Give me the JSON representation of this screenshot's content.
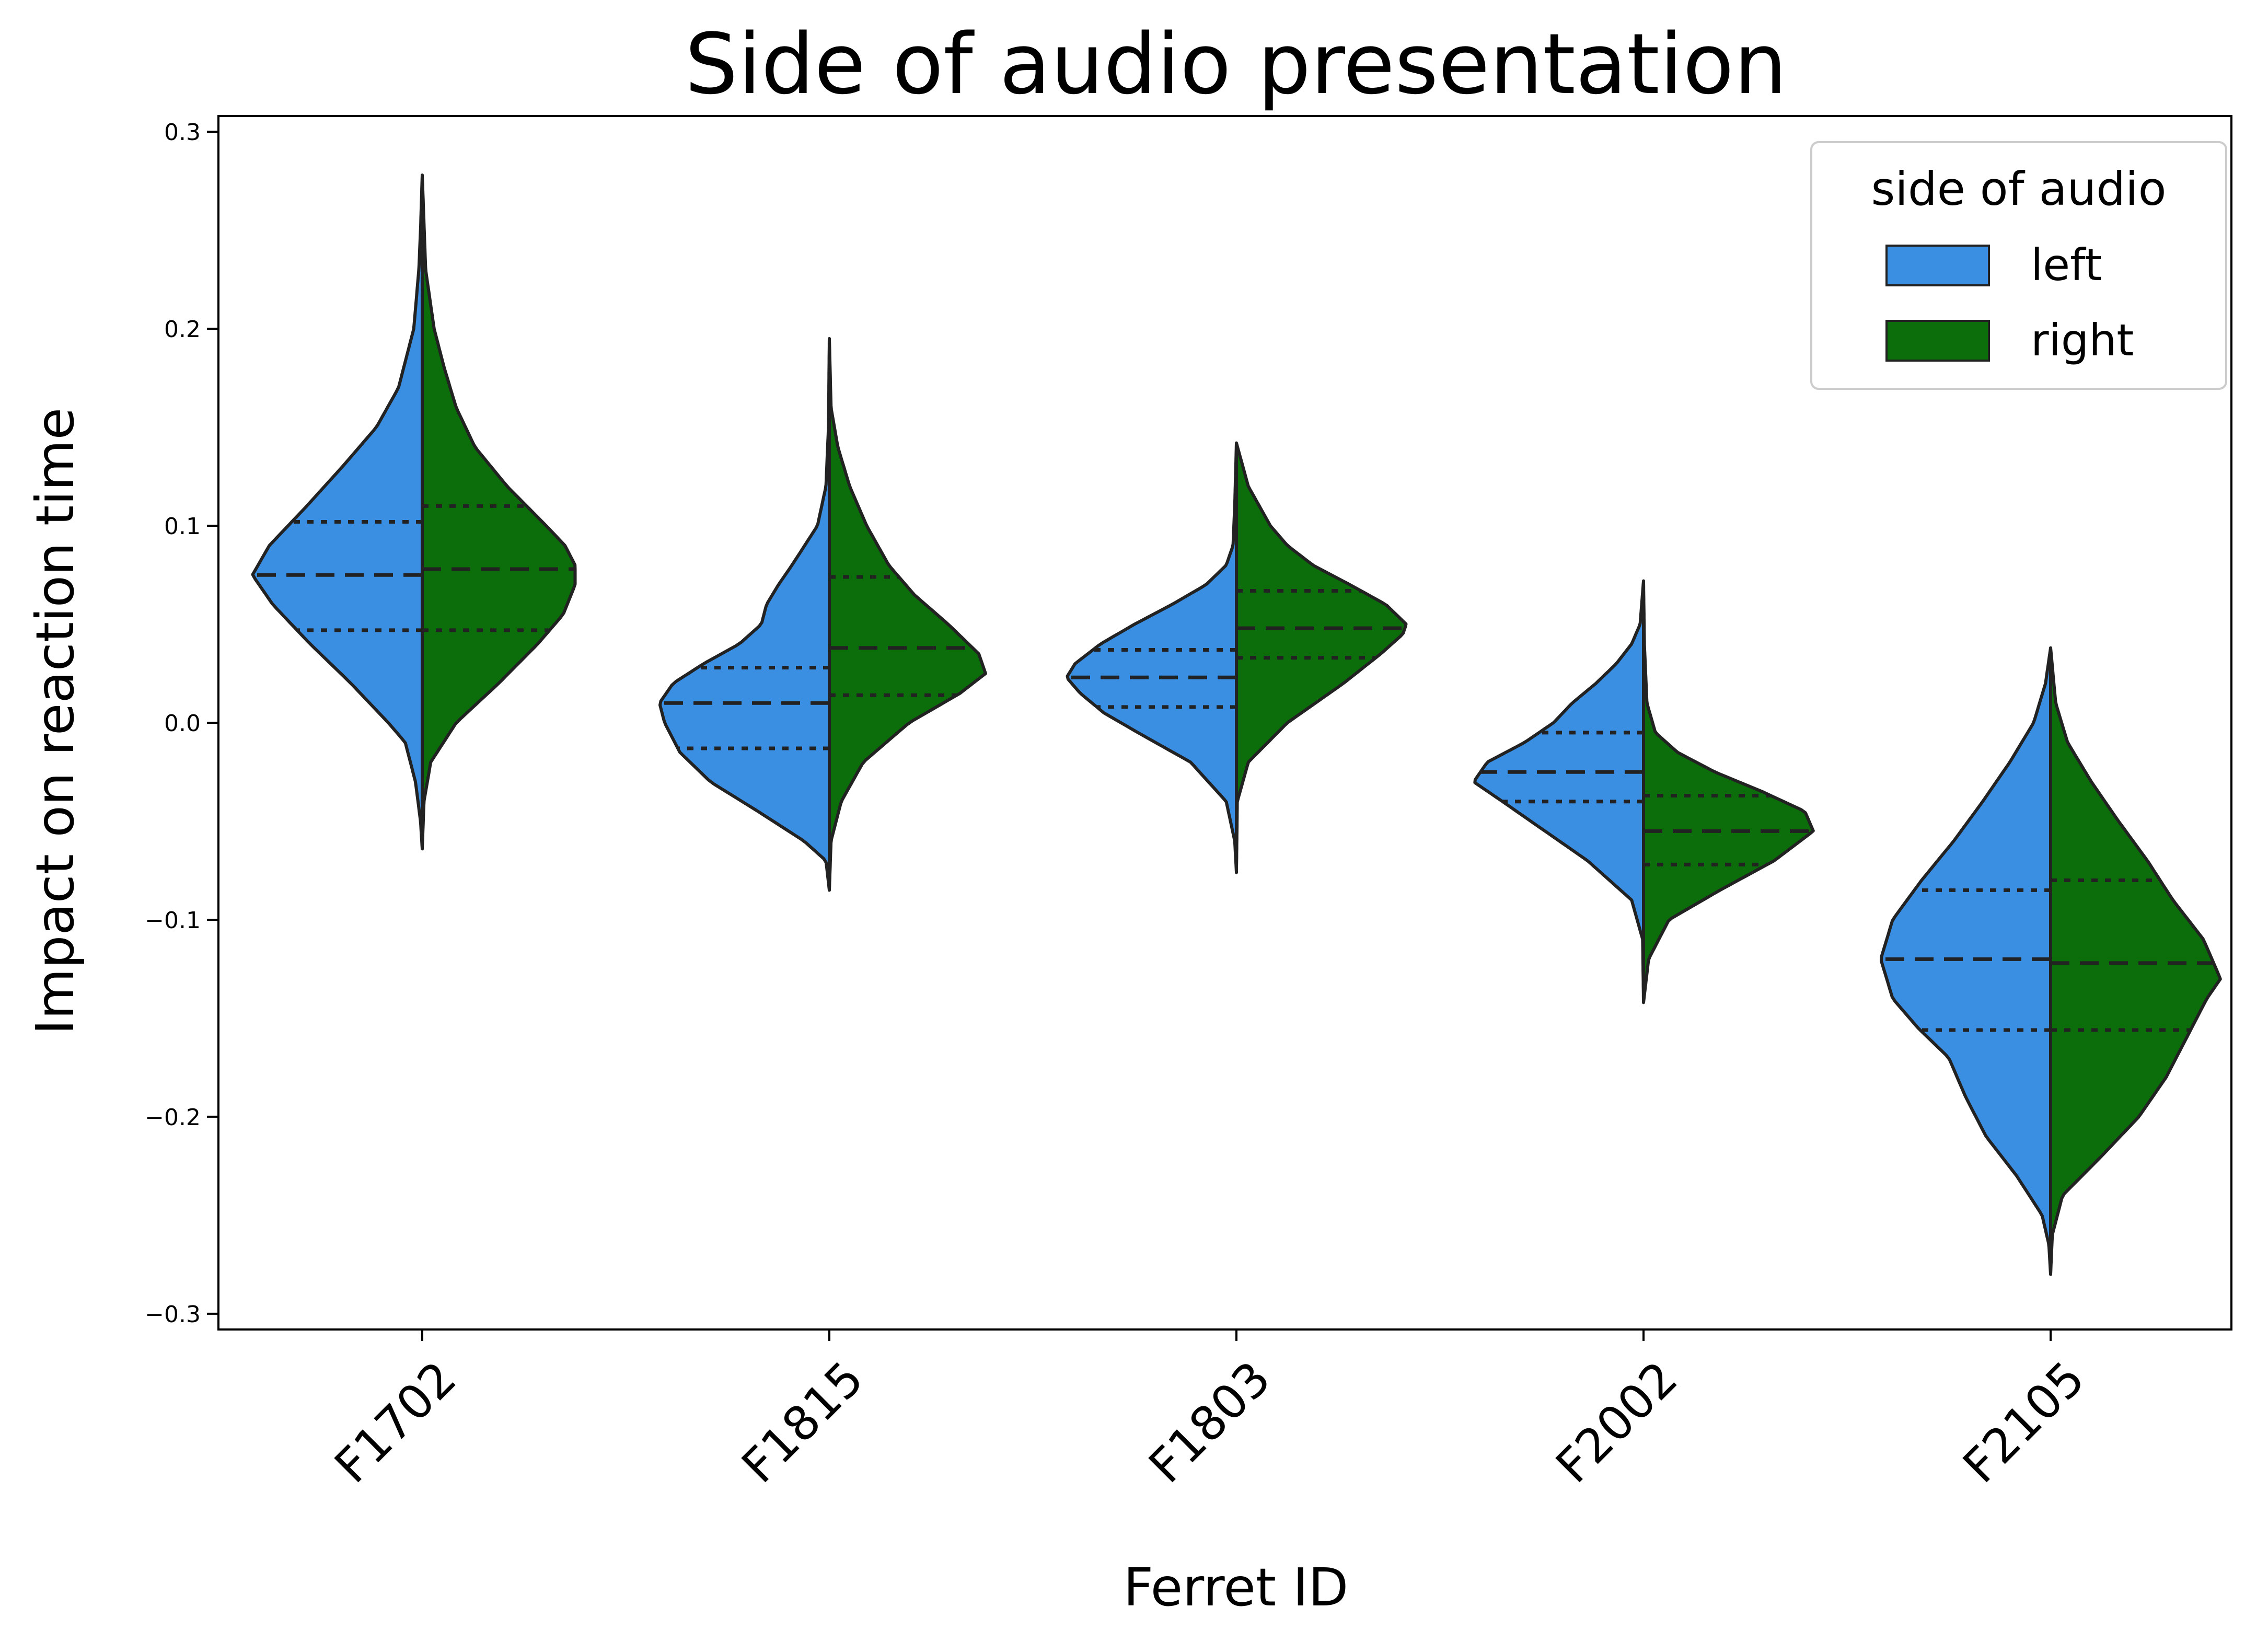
{
  "chart_data": {
    "type": "violin",
    "title": "Side of audio presentation",
    "xlabel": "Ferret ID",
    "ylabel": "Impact on reaction time",
    "categories": [
      "F1702",
      "F1815",
      "F1803",
      "F2002",
      "F2105"
    ],
    "ylim": [
      -0.308,
      0.308
    ],
    "yticks": [
      -0.3,
      -0.2,
      -0.1,
      0.0,
      0.1,
      0.2,
      0.3
    ],
    "ytick_labels": [
      "−0.3",
      "−0.2",
      "−0.1",
      "0.0",
      "0.1",
      "0.2",
      "0.3"
    ],
    "grid": false,
    "split": true,
    "inner": "quartile",
    "legend": {
      "title": "side of audio",
      "position": "top-right",
      "entries": [
        {
          "label": "left",
          "color": "#3a8fe3"
        },
        {
          "label": "right",
          "color": "#0b6e0b"
        }
      ]
    },
    "series": [
      {
        "name": "left",
        "color": "#3a8fe3",
        "violins": [
          {
            "quartiles": [
              0.047,
              0.075,
              0.102
            ],
            "profile": [
              [
                -0.064,
                0
              ],
              [
                -0.05,
                0.01
              ],
              [
                -0.03,
                0.04
              ],
              [
                -0.01,
                0.1
              ],
              [
                0.0,
                0.2
              ],
              [
                0.02,
                0.42
              ],
              [
                0.04,
                0.66
              ],
              [
                0.06,
                0.88
              ],
              [
                0.075,
                1.0
              ],
              [
                0.09,
                0.9
              ],
              [
                0.11,
                0.68
              ],
              [
                0.13,
                0.47
              ],
              [
                0.15,
                0.27
              ],
              [
                0.17,
                0.14
              ],
              [
                0.2,
                0.05
              ],
              [
                0.23,
                0.02
              ],
              [
                0.25,
                0.01
              ],
              [
                0.278,
                0
              ]
            ]
          },
          {
            "quartiles": [
              -0.013,
              0.01,
              0.028
            ],
            "profile": [
              [
                -0.085,
                0
              ],
              [
                -0.07,
                0.02
              ],
              [
                -0.06,
                0.15
              ],
              [
                -0.045,
                0.42
              ],
              [
                -0.03,
                0.7
              ],
              [
                -0.015,
                0.88
              ],
              [
                0.0,
                0.97
              ],
              [
                0.01,
                1.0
              ],
              [
                0.02,
                0.92
              ],
              [
                0.03,
                0.74
              ],
              [
                0.04,
                0.53
              ],
              [
                0.05,
                0.4
              ],
              [
                0.06,
                0.37
              ],
              [
                0.07,
                0.3
              ],
              [
                0.08,
                0.22
              ],
              [
                0.1,
                0.07
              ],
              [
                0.12,
                0.02
              ],
              [
                0.15,
                0.005
              ],
              [
                0.195,
                0
              ]
            ]
          },
          {
            "quartiles": [
              0.008,
              0.023,
              0.037
            ],
            "profile": [
              [
                -0.076,
                0
              ],
              [
                -0.06,
                0.01
              ],
              [
                -0.04,
                0.06
              ],
              [
                -0.02,
                0.27
              ],
              [
                -0.005,
                0.58
              ],
              [
                0.005,
                0.78
              ],
              [
                0.015,
                0.92
              ],
              [
                0.023,
                1.0
              ],
              [
                0.03,
                0.95
              ],
              [
                0.04,
                0.8
              ],
              [
                0.05,
                0.6
              ],
              [
                0.06,
                0.38
              ],
              [
                0.07,
                0.18
              ],
              [
                0.08,
                0.06
              ],
              [
                0.09,
                0.02
              ],
              [
                0.11,
                0.01
              ],
              [
                0.142,
                0
              ]
            ]
          },
          {
            "quartiles": [
              -0.04,
              -0.025,
              -0.005
            ],
            "profile": [
              [
                -0.142,
                0
              ],
              [
                -0.11,
                0.005
              ],
              [
                -0.09,
                0.07
              ],
              [
                -0.07,
                0.33
              ],
              [
                -0.055,
                0.58
              ],
              [
                -0.04,
                0.83
              ],
              [
                -0.03,
                1.0
              ],
              [
                -0.02,
                0.92
              ],
              [
                -0.01,
                0.7
              ],
              [
                0.0,
                0.53
              ],
              [
                0.01,
                0.42
              ],
              [
                0.02,
                0.28
              ],
              [
                0.03,
                0.16
              ],
              [
                0.04,
                0.07
              ],
              [
                0.05,
                0.02
              ],
              [
                0.072,
                0
              ]
            ]
          },
          {
            "quartiles": [
              -0.156,
              -0.12,
              -0.085
            ],
            "profile": [
              [
                -0.28,
                0
              ],
              [
                -0.265,
                0.01
              ],
              [
                -0.25,
                0.05
              ],
              [
                -0.23,
                0.2
              ],
              [
                -0.21,
                0.38
              ],
              [
                -0.19,
                0.5
              ],
              [
                -0.17,
                0.6
              ],
              [
                -0.155,
                0.78
              ],
              [
                -0.14,
                0.93
              ],
              [
                -0.12,
                1.0
              ],
              [
                -0.1,
                0.93
              ],
              [
                -0.08,
                0.76
              ],
              [
                -0.06,
                0.57
              ],
              [
                -0.04,
                0.4
              ],
              [
                -0.02,
                0.24
              ],
              [
                0.0,
                0.1
              ],
              [
                0.02,
                0.03
              ],
              [
                0.038,
                0
              ]
            ]
          }
        ]
      },
      {
        "name": "right",
        "color": "#0b6e0b",
        "violins": [
          {
            "quartiles": [
              0.047,
              0.078,
              0.11
            ],
            "profile": [
              [
                -0.064,
                0
              ],
              [
                -0.04,
                0.01
              ],
              [
                -0.02,
                0.05
              ],
              [
                0.0,
                0.2
              ],
              [
                0.02,
                0.45
              ],
              [
                0.04,
                0.68
              ],
              [
                0.055,
                0.83
              ],
              [
                0.07,
                0.9
              ],
              [
                0.08,
                0.9
              ],
              [
                0.09,
                0.84
              ],
              [
                0.1,
                0.73
              ],
              [
                0.12,
                0.5
              ],
              [
                0.14,
                0.31
              ],
              [
                0.16,
                0.2
              ],
              [
                0.18,
                0.13
              ],
              [
                0.2,
                0.07
              ],
              [
                0.23,
                0.02
              ],
              [
                0.278,
                0
              ]
            ]
          },
          {
            "quartiles": [
              0.014,
              0.038,
              0.074
            ],
            "profile": [
              [
                -0.085,
                0
              ],
              [
                -0.06,
                0.01
              ],
              [
                -0.04,
                0.07
              ],
              [
                -0.02,
                0.2
              ],
              [
                0.0,
                0.47
              ],
              [
                0.015,
                0.77
              ],
              [
                0.025,
                0.92
              ],
              [
                0.035,
                0.88
              ],
              [
                0.05,
                0.7
              ],
              [
                0.065,
                0.5
              ],
              [
                0.08,
                0.35
              ],
              [
                0.1,
                0.22
              ],
              [
                0.12,
                0.12
              ],
              [
                0.14,
                0.05
              ],
              [
                0.16,
                0.01
              ],
              [
                0.195,
                0
              ]
            ]
          },
          {
            "quartiles": [
              0.033,
              0.048,
              0.067
            ],
            "profile": [
              [
                -0.076,
                0
              ],
              [
                -0.04,
                0.005
              ],
              [
                -0.02,
                0.07
              ],
              [
                0.0,
                0.3
              ],
              [
                0.02,
                0.63
              ],
              [
                0.035,
                0.85
              ],
              [
                0.045,
                0.98
              ],
              [
                0.05,
                1.0
              ],
              [
                0.06,
                0.88
              ],
              [
                0.07,
                0.67
              ],
              [
                0.08,
                0.45
              ],
              [
                0.09,
                0.3
              ],
              [
                0.1,
                0.2
              ],
              [
                0.12,
                0.07
              ],
              [
                0.142,
                0
              ]
            ]
          },
          {
            "quartiles": [
              -0.072,
              -0.055,
              -0.037
            ],
            "profile": [
              [
                -0.142,
                0
              ],
              [
                -0.12,
                0.03
              ],
              [
                -0.1,
                0.15
              ],
              [
                -0.085,
                0.45
              ],
              [
                -0.07,
                0.77
              ],
              [
                -0.055,
                1.0
              ],
              [
                -0.045,
                0.95
              ],
              [
                -0.035,
                0.7
              ],
              [
                -0.025,
                0.42
              ],
              [
                -0.015,
                0.2
              ],
              [
                -0.005,
                0.07
              ],
              [
                0.01,
                0.02
              ],
              [
                0.04,
                0.005
              ],
              [
                0.072,
                0
              ]
            ]
          },
          {
            "quartiles": [
              -0.156,
              -0.122,
              -0.08
            ],
            "profile": [
              [
                -0.28,
                0
              ],
              [
                -0.26,
                0.01
              ],
              [
                -0.24,
                0.07
              ],
              [
                -0.22,
                0.3
              ],
              [
                -0.2,
                0.52
              ],
              [
                -0.18,
                0.68
              ],
              [
                -0.16,
                0.8
              ],
              [
                -0.14,
                0.92
              ],
              [
                -0.13,
                1.0
              ],
              [
                -0.11,
                0.9
              ],
              [
                -0.09,
                0.72
              ],
              [
                -0.07,
                0.57
              ],
              [
                -0.05,
                0.4
              ],
              [
                -0.03,
                0.24
              ],
              [
                -0.01,
                0.1
              ],
              [
                0.01,
                0.03
              ],
              [
                0.038,
                0
              ]
            ]
          }
        ]
      }
    ]
  }
}
